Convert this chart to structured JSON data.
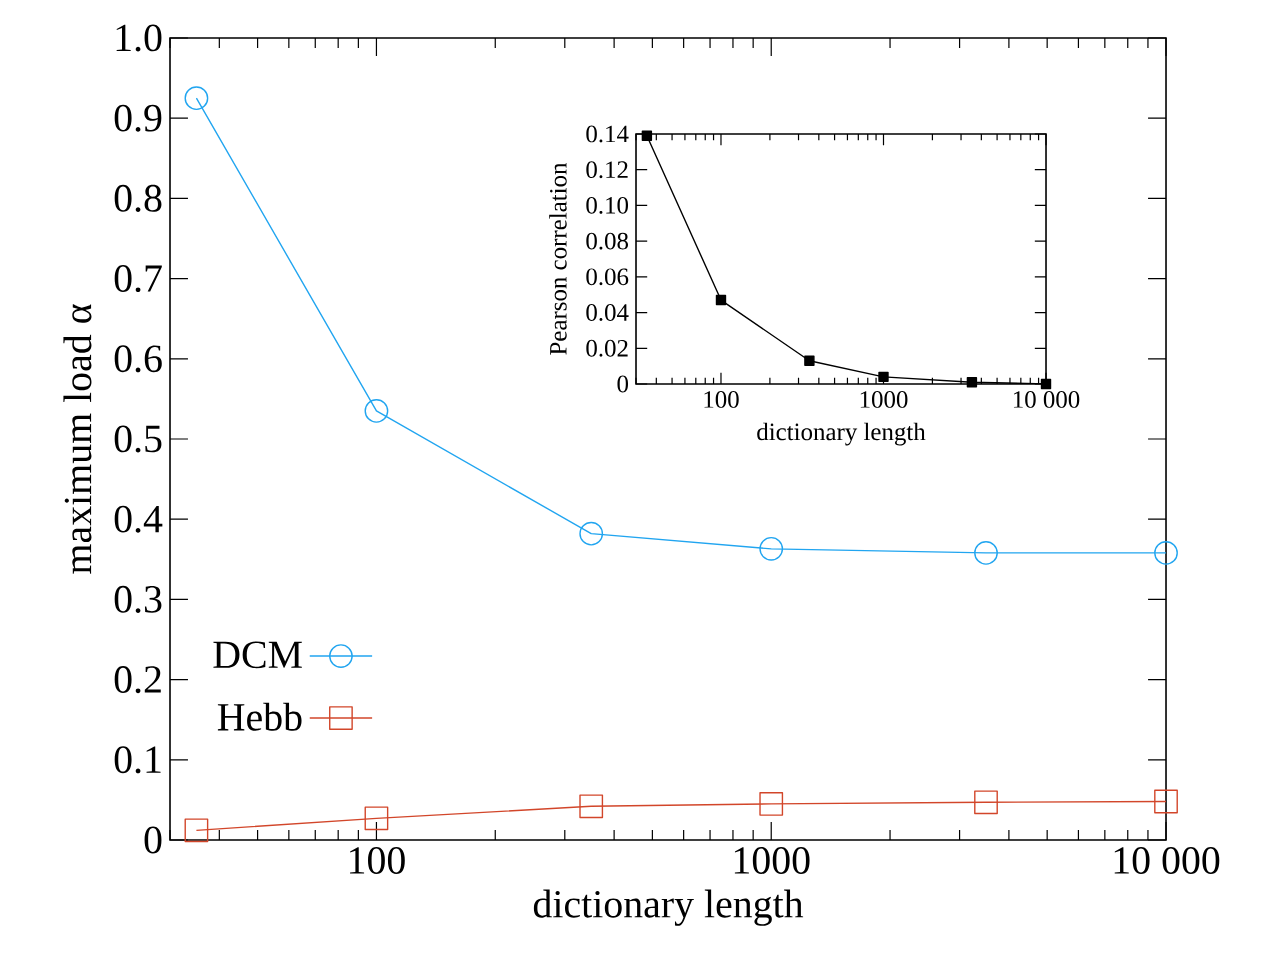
{
  "chart_data": [
    {
      "type": "line",
      "xlabel": "dictionary length",
      "ylabel": "maximum load α",
      "log": "x",
      "legend": "bottom left",
      "x": [
        35,
        100,
        350,
        1000,
        3500,
        10000
      ],
      "series": [
        {
          "name": "DCM",
          "color": "#21a5f0",
          "marker": "circle",
          "values": [
            0.925,
            0.535,
            0.382,
            0.363,
            0.358,
            0.358
          ]
        },
        {
          "name": "Hebb",
          "color": "#d2462a",
          "marker": "square",
          "values": [
            0.012,
            0.027,
            0.042,
            0.045,
            0.047,
            0.048
          ]
        }
      ],
      "xlim": [
        30,
        10000
      ],
      "ylim": [
        0,
        1
      ],
      "xticks": [
        100,
        1000,
        {
          "value": 10000,
          "label": "10 000"
        }
      ],
      "yticks": [
        0,
        0.1,
        0.2,
        0.3,
        0.4,
        0.5,
        0.6,
        0.7,
        0.8,
        0.9,
        {
          "value": 1,
          "label": "1.0"
        }
      ]
    },
    {
      "type": "line",
      "xlabel": "dictionary length",
      "ylabel": "Pearson correlation",
      "log": "x",
      "x": [
        35,
        100,
        350,
        1000,
        3500,
        10000
      ],
      "series": [
        {
          "color": "#000000",
          "marker": "square",
          "values": [
            0.139,
            0.047,
            0.013,
            0.004,
            0.001,
            0
          ]
        }
      ],
      "xlim": [
        30,
        10000
      ],
      "ylim": [
        0,
        0.14
      ],
      "xticks": [
        100,
        1000,
        {
          "value": 10000,
          "label": "10 000"
        }
      ],
      "yticks": [
        0,
        0.02,
        0.04,
        0.06,
        0.08,
        {
          "value": 0.1,
          "label": "0.10"
        },
        0.12,
        0.14
      ]
    }
  ]
}
